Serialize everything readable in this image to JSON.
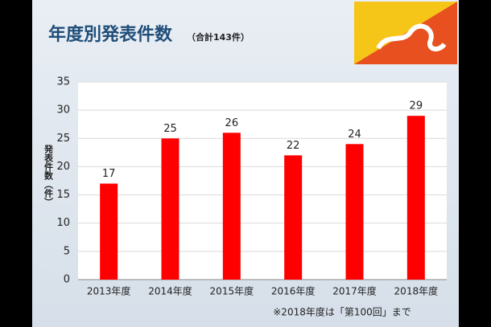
{
  "chart_data": {
    "type": "bar",
    "title": "年度別発表件数",
    "subtitle": "（合計143件）",
    "y_label": "発表件数（件）",
    "note": "※2018年度は「第100回」まで",
    "categories": [
      "2013年度",
      "2014年度",
      "2015年度",
      "2016年度",
      "2017年度",
      "2018年度"
    ],
    "values": [
      17,
      25,
      26,
      22,
      24,
      29
    ],
    "color": "#ff0000",
    "ylim": [
      0,
      35
    ],
    "yticks": [
      0,
      5,
      10,
      15,
      20,
      25,
      30,
      35
    ],
    "grid": true
  }
}
